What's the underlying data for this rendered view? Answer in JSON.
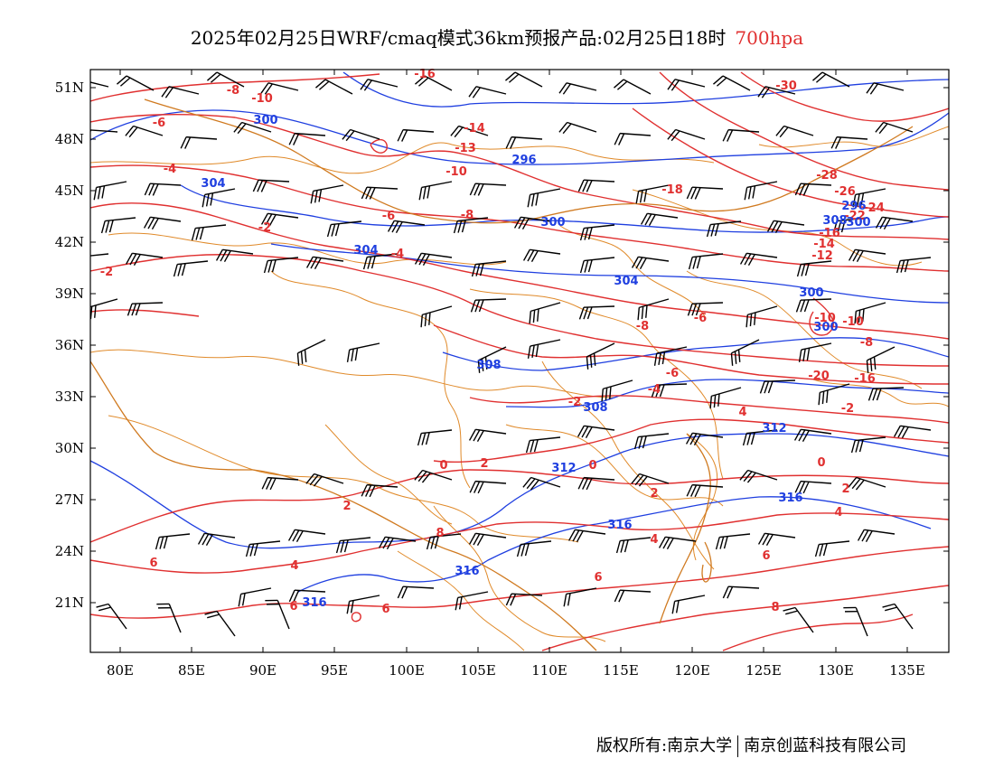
{
  "title": {
    "main": "2025年02月25日WRF/cmaq模式36km预报产品:02月25日18时",
    "level": "700hpa"
  },
  "colors": {
    "temperature": "#e03030",
    "height": "#1f3fe0",
    "border": "#e08a2a",
    "wind": "#000000"
  },
  "map": {
    "lat_labels": [
      "51N",
      "48N",
      "45N",
      "42N",
      "39N",
      "36N",
      "33N",
      "30N",
      "27N",
      "24N",
      "21N"
    ],
    "lon_labels": [
      "80E",
      "85E",
      "90E",
      "95E",
      "100E",
      "105E",
      "110E",
      "115E",
      "120E",
      "125E",
      "130E",
      "135E"
    ],
    "temp_labels": [
      "-16",
      "-10",
      "-8",
      "-6",
      "-4",
      "-2",
      "-14",
      "-13",
      "-10",
      "-8",
      "-6",
      "-4",
      "-2",
      "-2",
      "0",
      "0",
      "2",
      "2",
      "4",
      "6",
      "6",
      "8",
      "6",
      "4",
      "2",
      "-18",
      "-30",
      "-28",
      "-26",
      "-24",
      "-22",
      "-16",
      "-14",
      "-12",
      "-10",
      "-8",
      "-6",
      "-4",
      "-2",
      "0",
      "2",
      "4",
      "6",
      "8",
      "6",
      "-8",
      "-6",
      "4",
      "-10",
      "-20",
      "-16"
    ],
    "height_labels": [
      "300",
      "304",
      "296",
      "300",
      "304",
      "304",
      "300",
      "308",
      "308",
      "312",
      "312",
      "316",
      "316",
      "316",
      "316",
      "300",
      "300",
      "296",
      "308"
    ]
  },
  "footer": {
    "copyright": "版权所有:南京大学",
    "company": "南京创蓝科技有限公司"
  }
}
